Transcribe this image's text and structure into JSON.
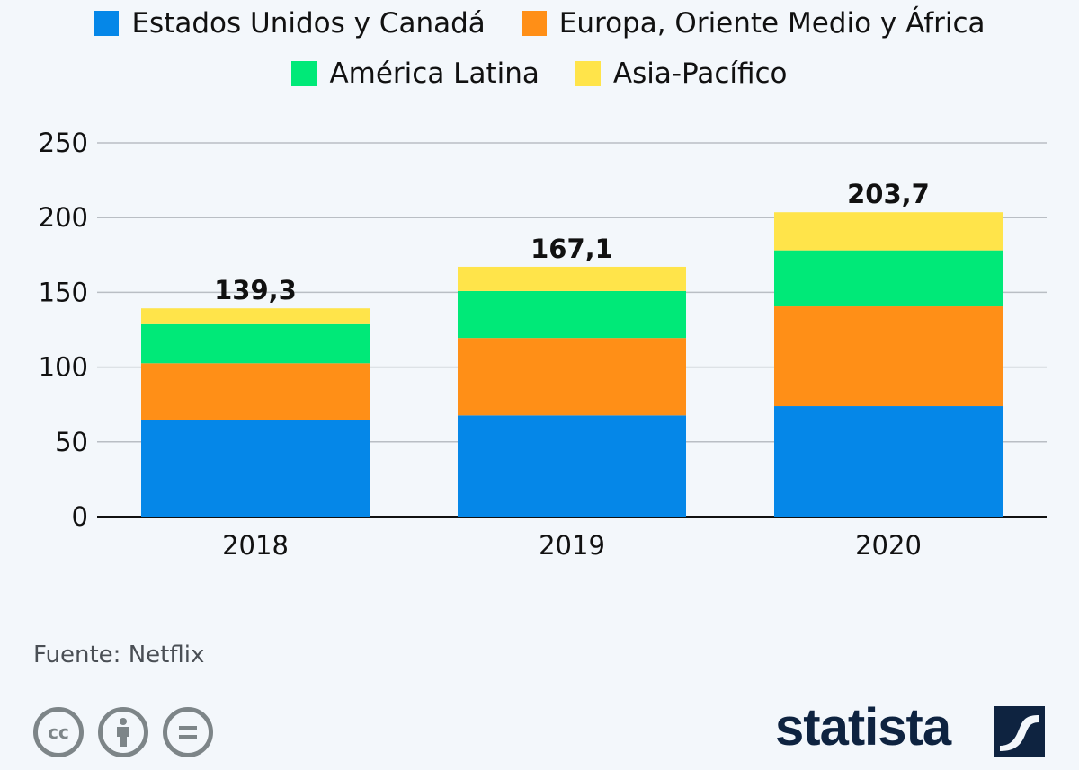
{
  "chart_data": {
    "type": "bar",
    "stacked": true,
    "title": "",
    "xlabel": "",
    "ylabel": "",
    "categories": [
      "2018",
      "2019",
      "2020"
    ],
    "series": [
      {
        "name": "Estados Unidos y Canadá",
        "color": "#0587e8",
        "values": [
          64.8,
          67.7,
          73.9
        ]
      },
      {
        "name": "Europa, Oriente Medio y África",
        "color": "#ff8f17",
        "values": [
          37.8,
          51.8,
          66.7
        ]
      },
      {
        "name": "América Latina",
        "color": "#00e978",
        "values": [
          26.1,
          31.4,
          37.5
        ]
      },
      {
        "name": "Asia-Pacífico",
        "color": "#ffe44a",
        "values": [
          10.6,
          16.2,
          25.5
        ]
      }
    ],
    "totals": [
      "139,3",
      "167,1",
      "203,7"
    ],
    "ylim": [
      0,
      250
    ],
    "yticks": [
      "0",
      "50",
      "100",
      "150",
      "200",
      "250"
    ],
    "grid": true,
    "legend": "top-center"
  },
  "footer": {
    "source": "Fuente: Netflix",
    "license_icons": [
      "creative-commons-icon",
      "attribution-icon",
      "no-derivatives-icon"
    ],
    "brand": "statista"
  }
}
